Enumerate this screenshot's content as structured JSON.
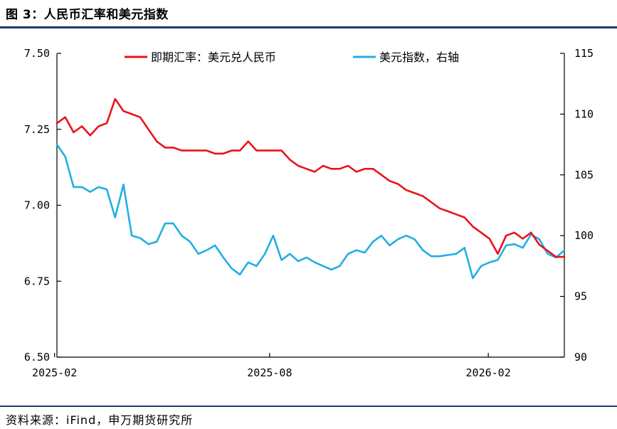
{
  "figure": {
    "title": "图 3：人民币汇率和美元指数",
    "source": "资料来源：iFind，申万期货研究所"
  },
  "colors": {
    "cny": "#e8141a",
    "dxy": "#22aee5",
    "axis": "#000000",
    "rule": "#1f3b6e"
  },
  "chart_data": {
    "type": "line",
    "title": "",
    "xlabel": "",
    "x_ticks": [
      "2025-02",
      "2025-08",
      "2026-02"
    ],
    "y_left": {
      "label": "",
      "lim": [
        6.5,
        7.5
      ],
      "ticks": [
        "6.50",
        "6.75",
        "7.00",
        "7.25",
        "7.50"
      ]
    },
    "y_right": {
      "label": "",
      "lim": [
        90,
        115
      ],
      "ticks": [
        "90",
        "95",
        "100",
        "105",
        "110",
        "115"
      ]
    },
    "grid": false,
    "legend_position": "top",
    "series": [
      {
        "name": "即期汇率：美元兑人民币",
        "axis": "left",
        "x": [
          "2025-02-03",
          "2025-02-10",
          "2025-02-17",
          "2025-02-24",
          "2025-03-03",
          "2025-03-10",
          "2025-03-17",
          "2025-03-24",
          "2025-03-31",
          "2025-04-07",
          "2025-04-14",
          "2025-04-21",
          "2025-04-28",
          "2025-05-05",
          "2025-05-12",
          "2025-05-19",
          "2025-05-26",
          "2025-06-02",
          "2025-06-09",
          "2025-06-16",
          "2025-06-23",
          "2025-06-30",
          "2025-07-07",
          "2025-07-14",
          "2025-07-21",
          "2025-07-28",
          "2025-08-04",
          "2025-08-11",
          "2025-08-18",
          "2025-08-25",
          "2025-09-01",
          "2025-09-08",
          "2025-09-15",
          "2025-09-22",
          "2025-09-29",
          "2025-10-06",
          "2025-10-13",
          "2025-10-20",
          "2025-10-27",
          "2025-11-03",
          "2025-11-10",
          "2025-11-17",
          "2025-11-24",
          "2025-12-01",
          "2025-12-08",
          "2025-12-15",
          "2025-12-22",
          "2025-12-29",
          "2026-01-05",
          "2026-01-12",
          "2026-01-19",
          "2026-01-26",
          "2026-02-02",
          "2026-02-09",
          "2026-02-16",
          "2026-02-23",
          "2026-03-02",
          "2026-03-09",
          "2026-03-16",
          "2026-03-23",
          "2026-03-30",
          "2026-04-06"
        ],
        "values": [
          7.27,
          7.29,
          7.24,
          7.26,
          7.23,
          7.26,
          7.27,
          7.35,
          7.31,
          7.3,
          7.29,
          7.25,
          7.21,
          7.19,
          7.19,
          7.18,
          7.18,
          7.18,
          7.18,
          7.17,
          7.17,
          7.18,
          7.18,
          7.21,
          7.18,
          7.18,
          7.18,
          7.18,
          7.15,
          7.13,
          7.12,
          7.11,
          7.13,
          7.12,
          7.12,
          7.13,
          7.11,
          7.12,
          7.12,
          7.1,
          7.08,
          7.07,
          7.05,
          7.04,
          7.03,
          7.01,
          6.99,
          6.98,
          6.97,
          6.96,
          6.93,
          6.91,
          6.89,
          6.84,
          6.9,
          6.91,
          6.89,
          6.91,
          6.87,
          6.85,
          6.83,
          6.83
        ]
      },
      {
        "name": "美元指数，右轴",
        "axis": "right",
        "x": [
          "2025-02-03",
          "2025-02-10",
          "2025-02-17",
          "2025-02-24",
          "2025-03-03",
          "2025-03-10",
          "2025-03-17",
          "2025-03-24",
          "2025-03-31",
          "2025-04-07",
          "2025-04-14",
          "2025-04-21",
          "2025-04-28",
          "2025-05-05",
          "2025-05-12",
          "2025-05-19",
          "2025-05-26",
          "2025-06-02",
          "2025-06-09",
          "2025-06-16",
          "2025-06-23",
          "2025-06-30",
          "2025-07-07",
          "2025-07-14",
          "2025-07-21",
          "2025-07-28",
          "2025-08-04",
          "2025-08-11",
          "2025-08-18",
          "2025-08-25",
          "2025-09-01",
          "2025-09-08",
          "2025-09-15",
          "2025-09-22",
          "2025-09-29",
          "2025-10-06",
          "2025-10-13",
          "2025-10-20",
          "2025-10-27",
          "2025-11-03",
          "2025-11-10",
          "2025-11-17",
          "2025-11-24",
          "2025-12-01",
          "2025-12-08",
          "2025-12-15",
          "2025-12-22",
          "2025-12-29",
          "2026-01-05",
          "2026-01-12",
          "2026-01-19",
          "2026-01-26",
          "2026-02-02",
          "2026-02-09",
          "2026-02-16",
          "2026-02-23",
          "2026-03-02",
          "2026-03-09",
          "2026-03-16",
          "2026-03-23",
          "2026-03-30",
          "2026-04-06"
        ],
        "values": [
          107.5,
          106.5,
          104.0,
          104.0,
          103.6,
          104.0,
          103.8,
          101.5,
          104.2,
          100.0,
          99.8,
          99.3,
          99.5,
          101.0,
          101.0,
          100.0,
          99.5,
          98.5,
          98.8,
          99.2,
          98.2,
          97.3,
          96.8,
          97.8,
          97.5,
          98.5,
          100.0,
          98.0,
          98.5,
          97.9,
          98.2,
          97.8,
          97.5,
          97.2,
          97.5,
          98.5,
          98.8,
          98.6,
          99.5,
          100.0,
          99.2,
          99.7,
          100.0,
          99.7,
          98.8,
          98.3,
          98.3,
          98.4,
          98.5,
          99.0,
          96.5,
          97.5,
          97.8,
          98.0,
          99.2,
          99.3,
          99.0,
          100.1,
          99.7,
          98.5,
          98.2,
          98.8
        ]
      }
    ]
  }
}
